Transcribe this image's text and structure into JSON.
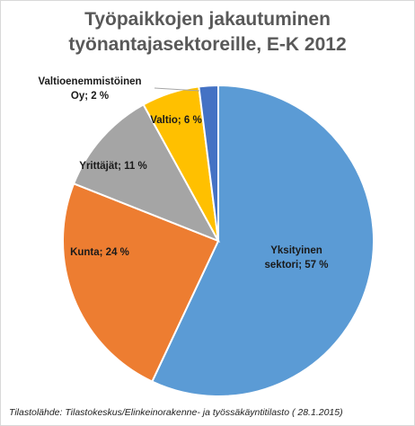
{
  "chart_data": {
    "type": "pie",
    "title_line1": "Työpaikkojen jakautuminen",
    "title_line2": "työnantajasektoreille, E-K 2012",
    "categories": [
      "Yksityinen sektori",
      "Kunta",
      "Yrittäjät",
      "Valtio",
      "Valtioenemmistöinen Oy"
    ],
    "values": [
      57,
      24,
      11,
      6,
      2
    ],
    "colors": [
      "#5b9bd5",
      "#ed7d31",
      "#a5a5a5",
      "#ffc000",
      "#4472c4"
    ],
    "labels": [
      {
        "lines": [
          "Yksityinen",
          "sektori; 57 %"
        ]
      },
      {
        "lines": [
          "Kunta; 24 %"
        ]
      },
      {
        "lines": [
          "Yrittäjät; 11 %"
        ]
      },
      {
        "lines": [
          "Valtio; 6 %"
        ]
      },
      {
        "lines": [
          "Valtioenemmistöinen",
          "Oy; 2 %"
        ]
      }
    ]
  },
  "source_note": "Tilastolähde: Tilastokeskus/Elinkeinorakenne- ja työssäkäyntitilasto ( 28.1.2015)"
}
